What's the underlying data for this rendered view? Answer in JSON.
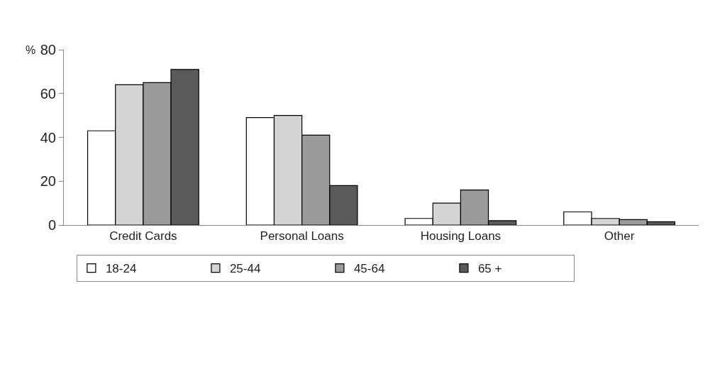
{
  "chart_data": {
    "type": "bar",
    "ylabel": "%",
    "categories": [
      "Credit Cards",
      "Personal Loans",
      "Housing Loans",
      "Other"
    ],
    "series": [
      {
        "name": "18-24",
        "color": "#ffffff",
        "values": [
          43,
          49,
          3,
          6
        ]
      },
      {
        "name": "25-44",
        "color": "#d4d4d4",
        "values": [
          64,
          50,
          10,
          3
        ]
      },
      {
        "name": "45-64",
        "color": "#9a9a9a",
        "values": [
          65,
          41,
          16,
          2.5
        ]
      },
      {
        "name": "65 +",
        "color": "#5a5a5a",
        "values": [
          71,
          18,
          2,
          1.5
        ]
      }
    ],
    "ylim": [
      0,
      80
    ],
    "yticks": [
      0,
      20,
      40,
      60,
      80
    ],
    "legend": "bottom"
  }
}
